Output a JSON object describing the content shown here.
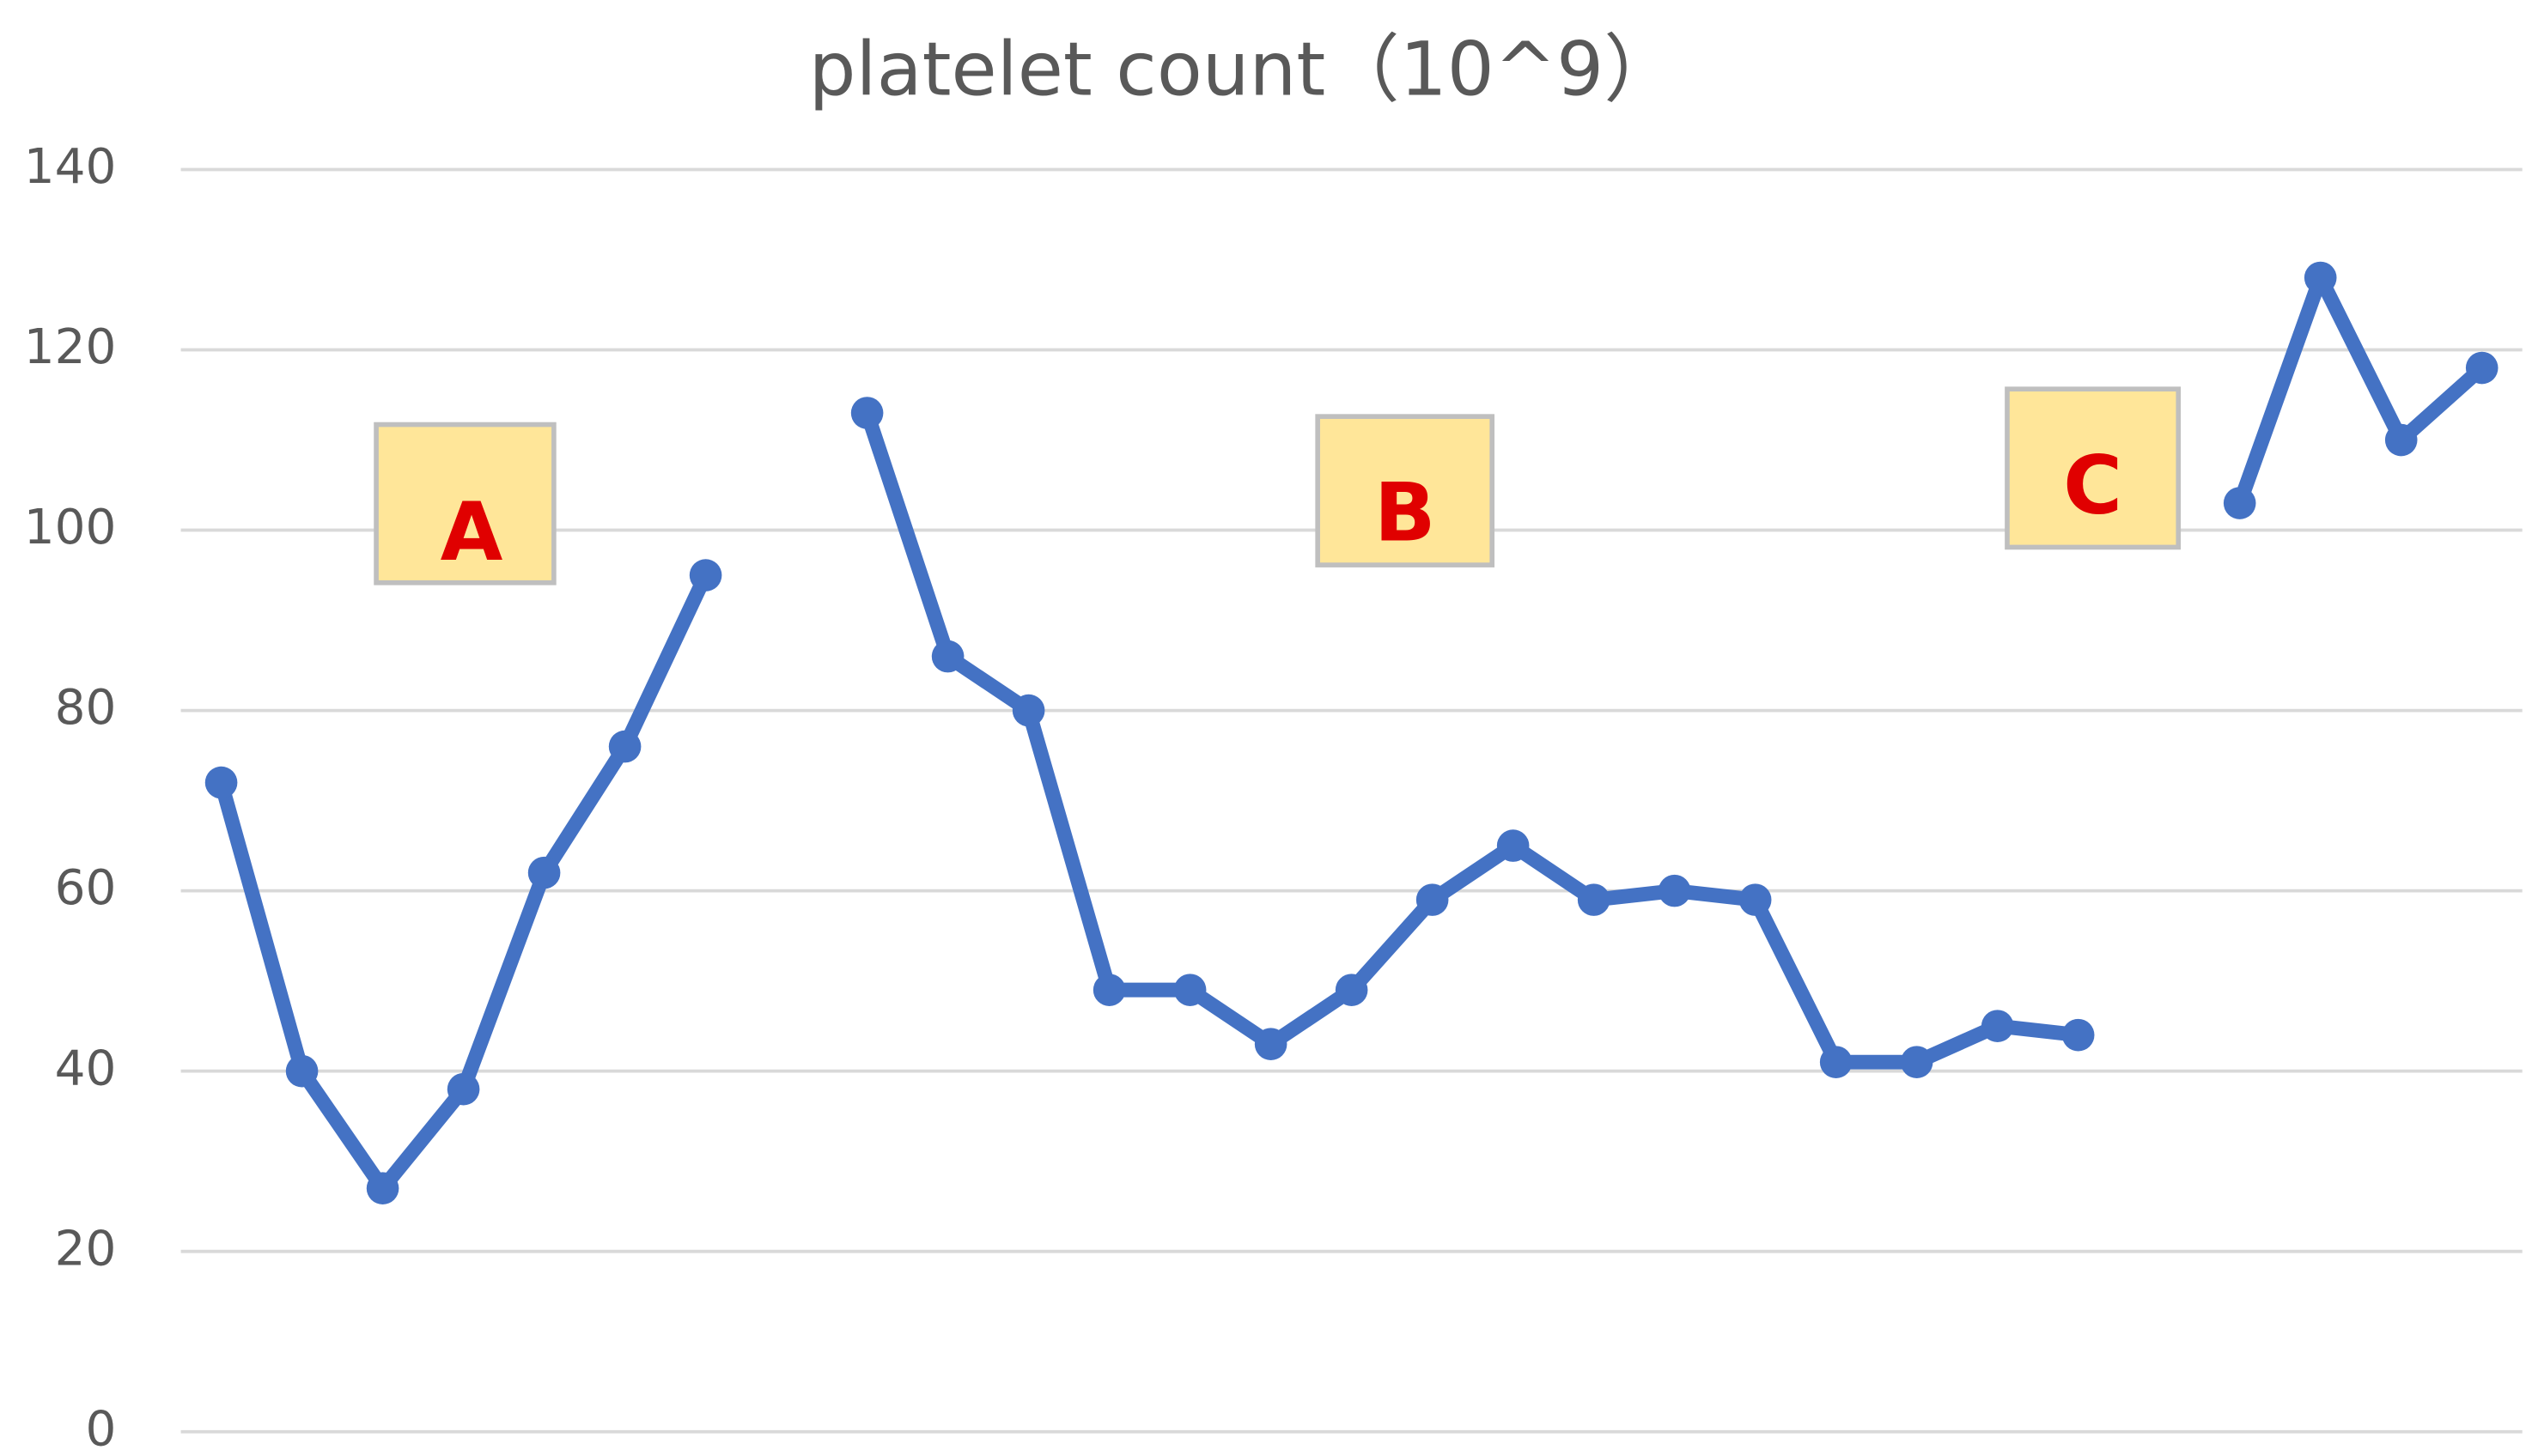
{
  "chart_data": {
    "type": "line",
    "title": "platelet count（10^9）",
    "categories": [
      null,
      null,
      null,
      null,
      null,
      null,
      null,
      null,
      null,
      null,
      null,
      null,
      null,
      null,
      null,
      null,
      null,
      null,
      null,
      null,
      null,
      null,
      null,
      null,
      null,
      null,
      null,
      null,
      null
    ],
    "series": [
      {
        "color": "#4472c4",
        "values": [
          72,
          40,
          27,
          38,
          62,
          76,
          95,
          null,
          113,
          86,
          80,
          49,
          49,
          43,
          49,
          59,
          65,
          59,
          60,
          59,
          41,
          41,
          45,
          44,
          null,
          103,
          128,
          110,
          118
        ]
      }
    ],
    "ylim": [
      0,
      140
    ],
    "yticks": [
      0,
      20,
      40,
      60,
      80,
      100,
      120,
      140
    ],
    "grid": true,
    "annotations": [
      "A",
      "B",
      "C"
    ]
  }
}
